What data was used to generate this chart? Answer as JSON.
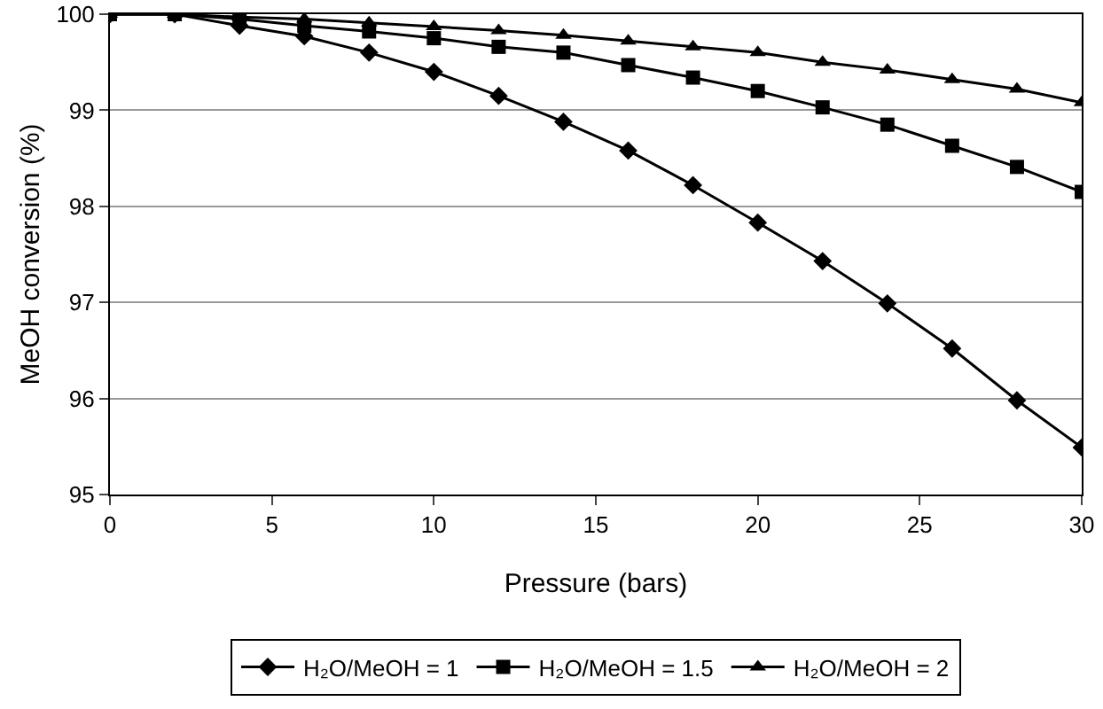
{
  "chart_data": {
    "type": "line",
    "xlabel": "Pressure (bars)",
    "ylabel": "MeOH conversion (%)",
    "x": [
      0,
      2,
      4,
      6,
      8,
      10,
      12,
      14,
      16,
      18,
      20,
      22,
      24,
      26,
      28,
      30
    ],
    "xlim": [
      0,
      30
    ],
    "xticks": [
      0,
      5,
      10,
      15,
      20,
      25,
      30
    ],
    "ylim": [
      95,
      100
    ],
    "yticks": [
      95,
      96,
      97,
      98,
      99,
      100
    ],
    "grid": "y",
    "legend": "bottom",
    "line_style": "solid",
    "series": [
      {
        "name": "H₂O/MeOH = 1",
        "color": "#000000",
        "marker": "diamond",
        "values": [
          100,
          100,
          99.88,
          99.77,
          99.6,
          99.4,
          99.15,
          98.88,
          98.58,
          98.22,
          97.83,
          97.43,
          96.99,
          96.52,
          95.98,
          95.49
        ]
      },
      {
        "name": "H₂O/MeOH = 1.5",
        "color": "#000000",
        "marker": "square",
        "values": [
          100,
          100,
          99.95,
          99.88,
          99.82,
          99.75,
          99.66,
          99.6,
          99.47,
          99.34,
          99.2,
          99.03,
          98.85,
          98.63,
          98.41,
          98.15
        ]
      },
      {
        "name": "H₂O/MeOH = 2",
        "color": "#000000",
        "marker": "triangle",
        "values": [
          100,
          100,
          99.97,
          99.95,
          99.91,
          99.87,
          99.83,
          99.78,
          99.72,
          99.66,
          99.6,
          99.5,
          99.42,
          99.32,
          99.22,
          99.08
        ]
      }
    ]
  }
}
